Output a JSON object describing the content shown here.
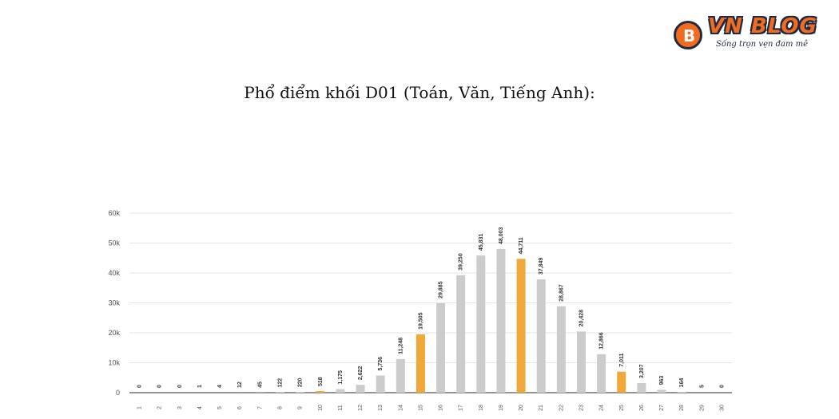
{
  "logo": {
    "badge_letter": "B",
    "name": "VN BLOG",
    "tagline": "Sống trọn vẹn đam mê"
  },
  "title": "Phổ điểm khối D01 (Toán, Văn, Tiếng Anh):",
  "chart_data": {
    "type": "bar",
    "categories": [
      "1",
      "2",
      "3",
      "4",
      "5",
      "6",
      "7",
      "8",
      "9",
      "10",
      "11",
      "12",
      "13",
      "14",
      "15",
      "16",
      "17",
      "18",
      "19",
      "20",
      "21",
      "22",
      "23",
      "24",
      "25",
      "26",
      "27",
      "28",
      "29",
      "30"
    ],
    "values": [
      0,
      0,
      0,
      1,
      4,
      12,
      45,
      122,
      220,
      518,
      1175,
      2622,
      5736,
      11248,
      19505,
      29885,
      39250,
      45831,
      48003,
      44711,
      37849,
      28867,
      20428,
      12866,
      7011,
      3207,
      963,
      164,
      5,
      0
    ],
    "value_labels": [
      "0",
      "0",
      "0",
      "1",
      "4",
      "12",
      "45",
      "122",
      "220",
      "518",
      "1,175",
      "2,622",
      "5,736",
      "11,248",
      "19,505",
      "29,885",
      "39,250",
      "45,831",
      "48,003",
      "44,711",
      "37,849",
      "28,867",
      "20,428",
      "12,866",
      "7,011",
      "3,207",
      "963",
      "164",
      "5",
      "0"
    ],
    "highlighted_categories": [
      "10",
      "15",
      "20",
      "25"
    ],
    "y_ticks": [
      0,
      10000,
      20000,
      30000,
      40000,
      50000,
      60000
    ],
    "y_tick_labels": [
      "0",
      "10k",
      "20k",
      "30k",
      "40k",
      "50k",
      "60k"
    ],
    "ylim": [
      0,
      60000
    ],
    "grid": true,
    "colors": {
      "bar": "#cccccc",
      "highlight": "#f0a83a",
      "grid": "#e6e6e6",
      "axis": "#555555"
    }
  }
}
